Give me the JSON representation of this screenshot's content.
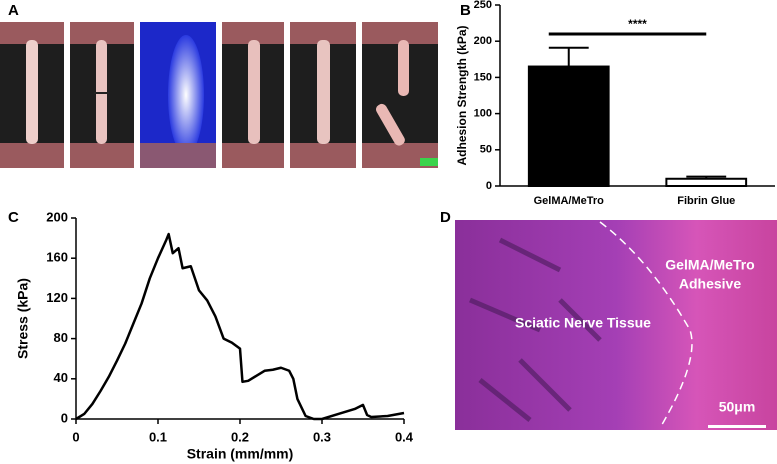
{
  "figure": {
    "panel_a": "A",
    "panel_d": "D",
    "annotations": [
      "GelMA/MeTro",
      "Adhesive",
      "Sciatic Nerve Tissue",
      "50μm"
    ]
  },
  "chart_data": [
    {
      "type": "bar",
      "panel": "B",
      "y_label": "Adhesion Strength (kPa)",
      "categories": [
        "GelMA/MeTro",
        "Fibrin Glue"
      ],
      "values": [
        165,
        10
      ],
      "errors": [
        26,
        3
      ],
      "colors": [
        "#000000",
        "#ffffff"
      ],
      "significance": "****",
      "ylim": [
        0,
        250
      ],
      "yticks": [
        0,
        50,
        100,
        150,
        200,
        250
      ]
    },
    {
      "type": "line",
      "panel": "C",
      "x_label": "Strain (mm/mm)",
      "y_label": "Stress (kPa)",
      "color": "#000000",
      "x": [
        0,
        0.01,
        0.02,
        0.03,
        0.04,
        0.05,
        0.06,
        0.07,
        0.08,
        0.09,
        0.1,
        0.11,
        0.113,
        0.118,
        0.125,
        0.13,
        0.14,
        0.15,
        0.16,
        0.17,
        0.18,
        0.19,
        0.2,
        0.203,
        0.21,
        0.22,
        0.23,
        0.24,
        0.25,
        0.26,
        0.265,
        0.27,
        0.28,
        0.29,
        0.3,
        0.32,
        0.34,
        0.35,
        0.355,
        0.36,
        0.38,
        0.4
      ],
      "values": [
        0,
        5,
        15,
        28,
        42,
        58,
        75,
        95,
        115,
        140,
        160,
        178,
        184,
        165,
        170,
        150,
        152,
        128,
        118,
        102,
        80,
        76,
        70,
        37,
        38,
        43,
        48,
        49,
        51,
        48,
        40,
        20,
        3,
        0,
        0,
        5,
        10,
        14,
        4,
        2,
        3,
        6
      ],
      "xlim": [
        0,
        0.4
      ],
      "xticks": [
        0,
        0.1,
        0.2,
        0.3,
        0.4
      ],
      "ylim": [
        0,
        200
      ],
      "yticks": [
        0,
        40,
        80,
        120,
        160,
        200
      ]
    }
  ]
}
